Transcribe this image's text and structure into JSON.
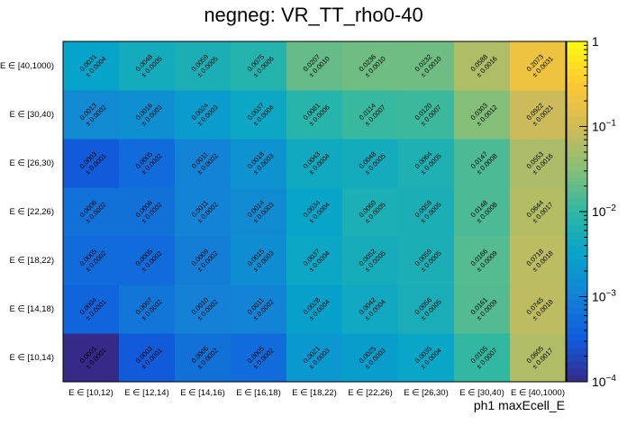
{
  "chart_data": {
    "type": "heatmap",
    "title": "negneg: VR_TT_rho0-40",
    "xlabel": "ph1 maxEcell_E",
    "ylabel": "",
    "x_categories": [
      "E ∈ [10,12)",
      "E ∈ [12,14)",
      "E ∈ [14,16)",
      "E ∈ [16,18)",
      "E ∈ [18,22)",
      "E ∈ [22,26)",
      "E ∈ [26,30)",
      "E ∈ [30,40)",
      "E ∈ [40,1000)"
    ],
    "y_categories": [
      "E ∈ [10,14)",
      "E ∈ [14,18)",
      "E ∈ [18,22)",
      "E ∈ [22,26)",
      "E ∈ [26,30)",
      "E ∈ [30,40)",
      "E ∈ [40,1000)"
    ],
    "z_scale": "log",
    "z_range": [
      0.0001,
      1
    ],
    "colorbar_ticks": [
      {
        "value": 1,
        "label": "1"
      },
      {
        "value": 0.1,
        "base": "10",
        "exp": "−1"
      },
      {
        "value": 0.01,
        "base": "10",
        "exp": "−2"
      },
      {
        "value": 0.001,
        "base": "10",
        "exp": "−3"
      },
      {
        "value": 0.0001,
        "base": "10",
        "exp": "−4"
      }
    ],
    "values": [
      [
        "0.0001",
        "0.0003",
        "0.0006",
        "0.0005",
        "0.0021",
        "0.0025",
        "0.0035",
        "0.0105",
        "0.0605"
      ],
      [
        "0.0004",
        "0.0007",
        "0.0010",
        "0.0011",
        "0.0028",
        "0.0042",
        "0.0056",
        "0.0161",
        "0.0745"
      ],
      [
        "0.0005",
        "0.0005",
        "0.0009",
        "0.0015",
        "0.0037",
        "0.0052",
        "0.0059",
        "0.0166",
        "0.0718"
      ],
      [
        "0.0006",
        "0.0006",
        "0.0011",
        "0.0014",
        "0.0034",
        "0.0060",
        "0.0059",
        "0.0148",
        "0.0644"
      ],
      [
        "0.0003",
        "0.0005",
        "0.0011",
        "0.0018",
        "0.0043",
        "0.0048",
        "0.0064",
        "0.0147",
        "0.0553"
      ],
      [
        "0.0013",
        "0.0016",
        "0.0024",
        "0.0037",
        "0.0081",
        "0.0114",
        "0.0120",
        "0.0303",
        "0.0922"
      ],
      [
        "0.0031",
        "0.0048",
        "0.0059",
        "0.0075",
        "0.0207",
        "0.0236",
        "0.0232",
        "0.0588",
        "0.2073"
      ]
    ],
    "errors": [
      [
        "± 0.0001",
        "± 0.0001",
        "± 0.0002",
        "± 0.0002",
        "± 0.0003",
        "± 0.0003",
        "± 0.0004",
        "± 0.0007",
        "± 0.0017"
      ],
      [
        "± 0.0001",
        "± 0.0002",
        "± 0.0002",
        "± 0.0002",
        "± 0.0004",
        "± 0.0004",
        "± 0.0005",
        "± 0.0009",
        "± 0.0018"
      ],
      [
        "± 0.0002",
        "± 0.0002",
        "± 0.0002",
        "± 0.0003",
        "± 0.0004",
        "± 0.0005",
        "± 0.0005",
        "± 0.0009",
        "± 0.0018"
      ],
      [
        "± 0.0002",
        "± 0.0002",
        "± 0.0002",
        "± 0.0003",
        "± 0.0004",
        "± 0.0005",
        "± 0.0005",
        "± 0.0008",
        "± 0.0017"
      ],
      [
        "± 0.0001",
        "± 0.0002",
        "± 0.0002",
        "± 0.0003",
        "± 0.0004",
        "± 0.0005",
        "± 0.0005",
        "± 0.0008",
        "± 0.0016"
      ],
      [
        "± 0.0002",
        "± 0.0003",
        "± 0.0003",
        "± 0.0004",
        "± 0.0006",
        "± 0.0007",
        "± 0.0007",
        "± 0.0012",
        "± 0.0021"
      ],
      [
        "± 0.0004",
        "± 0.0005",
        "± 0.0005",
        "± 0.0006",
        "± 0.0010",
        "± 0.0010",
        "± 0.0010",
        "± 0.0016",
        "± 0.0031"
      ]
    ],
    "colormap": [
      "#352a87",
      "#0f5cdd",
      "#1481d6",
      "#06a4ca",
      "#2eb7a4",
      "#87bf77",
      "#d1bb59",
      "#fec832",
      "#f9fb0e"
    ]
  }
}
